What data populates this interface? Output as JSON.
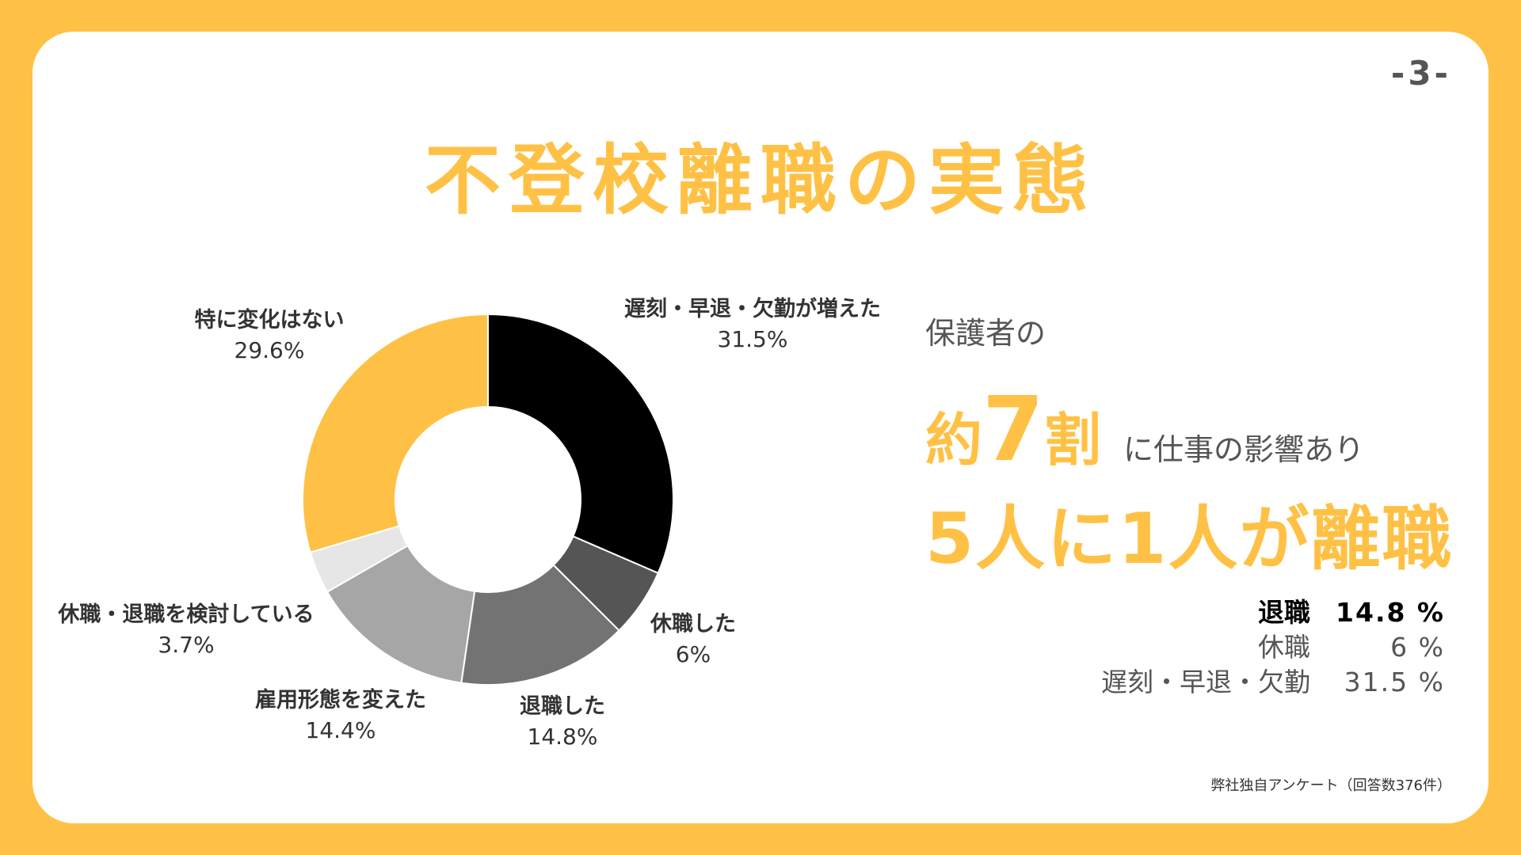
{
  "page_number": "-3-",
  "title": "不登校離職の実態",
  "summary": {
    "intro": "保護者の",
    "line2_prefix": "約",
    "line2_number": "7",
    "line2_unit": "割",
    "line2_suffix": "に仕事の影響あり",
    "headline": "5人に1人が離職"
  },
  "stats": [
    {
      "label": "退職",
      "value": "14.8 %"
    },
    {
      "label": "休職",
      "value": "6 %"
    },
    {
      "label": "遅刻・早退・欠勤",
      "value": "31.5 %"
    }
  ],
  "source": "弊社独自アンケート（回答数376件）",
  "colors": {
    "accent": "#FFC145",
    "text": "#555555"
  },
  "chart_data": {
    "type": "pie",
    "variant": "donut",
    "slices": [
      {
        "label": "遅刻・早退・欠勤が増えた",
        "value": 31.5,
        "display": "31.5%",
        "color": "#000000"
      },
      {
        "label": "休職した",
        "value": 6,
        "display": "6%",
        "color": "#555555"
      },
      {
        "label": "退職した",
        "value": 14.8,
        "display": "14.8%",
        "color": "#737373"
      },
      {
        "label": "雇用形態を変えた",
        "value": 14.4,
        "display": "14.4%",
        "color": "#A6A6A6"
      },
      {
        "label": "休職・退職を検討している",
        "value": 3.7,
        "display": "3.7%",
        "color": "#E6E6E6"
      },
      {
        "label": "特に変化はない",
        "value": 29.6,
        "display": "29.6%",
        "color": "#FFC145"
      }
    ]
  }
}
